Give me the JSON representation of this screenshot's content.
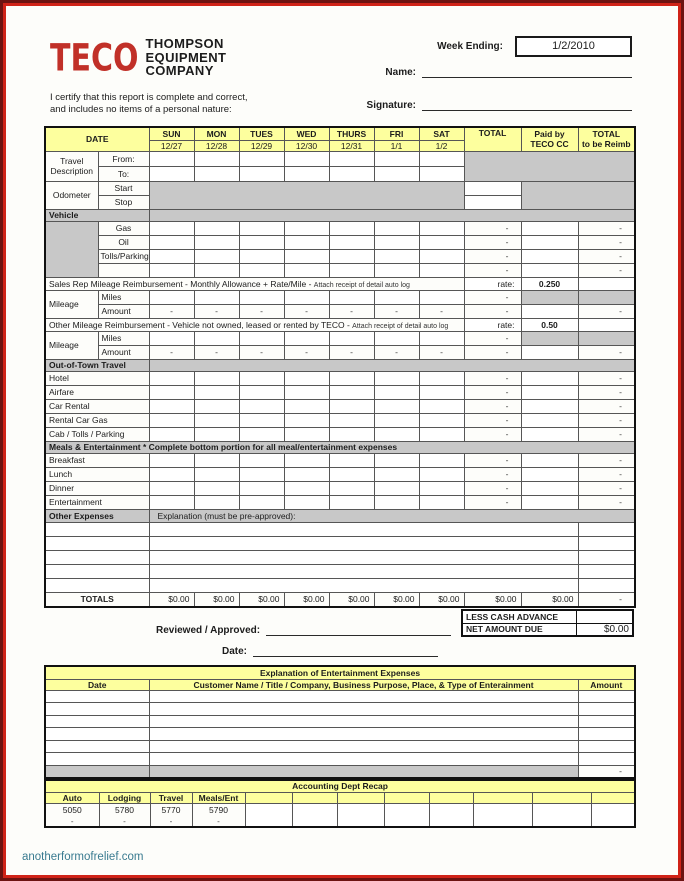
{
  "header": {
    "logo_text": "TECO",
    "company_name": "THOMPSON\nEQUIPMENT\nCOMPANY",
    "certify_text": "I certify that this report is complete and correct,\nand includes no items of a personal nature:",
    "week_ending_label": "Week Ending:",
    "week_ending_value": "1/2/2010",
    "name_label": "Name:",
    "signature_label": "Signature:"
  },
  "main_table": {
    "date_header": "DATE",
    "days": [
      "SUN",
      "MON",
      "TUES",
      "WED",
      "THURS",
      "FRI",
      "SAT"
    ],
    "dates": [
      "12/27",
      "12/28",
      "12/29",
      "12/30",
      "12/31",
      "1/1",
      "1/2"
    ],
    "total_header": "TOTAL",
    "paid_by_header": "Paid by\nTECO CC",
    "reimb_header": "TOTAL\nto be Reimb",
    "dash": "-",
    "travel": {
      "label": "Travel\nDescription",
      "from": "From:",
      "to": "To:"
    },
    "odometer": {
      "label": "Odometer",
      "start": "Start",
      "stop": "Stop"
    },
    "vehicle": {
      "header": "Vehicle",
      "rows": [
        "Gas",
        "Oil",
        "Tolls/Parking",
        ""
      ]
    },
    "sales_mileage": {
      "desc": "Sales Rep Mileage Reimbursement - Monthly Allowance + Rate/Mile -",
      "note": "Attach receipt of detail auto log",
      "rate_label": "rate:",
      "rate_value": "0.250",
      "row_label": "Mileage",
      "miles_label": "Miles",
      "amount_label": "Amount"
    },
    "other_mileage": {
      "desc": "Other Mileage Reimbursement - Vehicle not owned, leased or rented by TECO -",
      "note": "Attach receipt of detail auto log",
      "rate_label": "rate:",
      "rate_value": "0.50",
      "row_label": "Mileage",
      "miles_label": "Miles",
      "amount_label": "Amount"
    },
    "out_of_town": {
      "header": "Out-of-Town Travel",
      "rows": [
        "Hotel",
        "Airfare",
        "Car Rental",
        "Rental Car Gas",
        "Cab / Tolls / Parking"
      ]
    },
    "meals": {
      "header": "Meals & Entertainment * Complete bottom portion for all meal/entertainment expenses",
      "rows": [
        "Breakfast",
        "Lunch",
        "Dinner",
        "Entertainment"
      ]
    },
    "other_expenses": {
      "header": "Other Expenses",
      "explanation_label": "Explanation (must be pre-approved):",
      "blank_row_count": 5
    },
    "totals": {
      "label": "TOTALS",
      "day_values": [
        "$0.00",
        "$0.00",
        "$0.00",
        "$0.00",
        "$0.00",
        "$0.00",
        "$0.00"
      ],
      "total_value": "$0.00",
      "paid_value": "$0.00",
      "reimb_value": "-"
    }
  },
  "summary": {
    "reviewed_label": "Reviewed / Approved:",
    "date_label": "Date:",
    "less_cash_advance_label": "LESS CASH ADVANCE",
    "net_amount_due_label": "NET AMOUNT DUE",
    "net_amount_due_value": "$0.00"
  },
  "entertainment_table": {
    "title": "Explanation of Entertainment Expenses",
    "columns": {
      "date": "Date",
      "description": "Customer Name / Title / Company,  Business Purpose, Place, & Type of Enterainment",
      "amount": "Amount"
    },
    "blank_row_count": 6,
    "last_row_amount": "-"
  },
  "recap": {
    "title": "Accounting Dept Recap",
    "column_labels": [
      "Auto",
      "Lodging",
      "Travel",
      "Meals/Ent",
      "",
      "",
      "",
      "",
      "",
      "",
      "",
      ""
    ],
    "account_numbers": [
      "5050",
      "5780",
      "5770",
      "5790"
    ],
    "dash": "-"
  },
  "footer": {
    "link": "anotherformofrelief.com"
  },
  "colors": {
    "accent_yellow": "#fdff9e",
    "blocked_gray": "#c8c8c8",
    "border_red_outer": "#6d1311",
    "border_red_inner": "#d02318",
    "logo_red": "#c13028",
    "footer_link_teal": "#3a7b90"
  }
}
